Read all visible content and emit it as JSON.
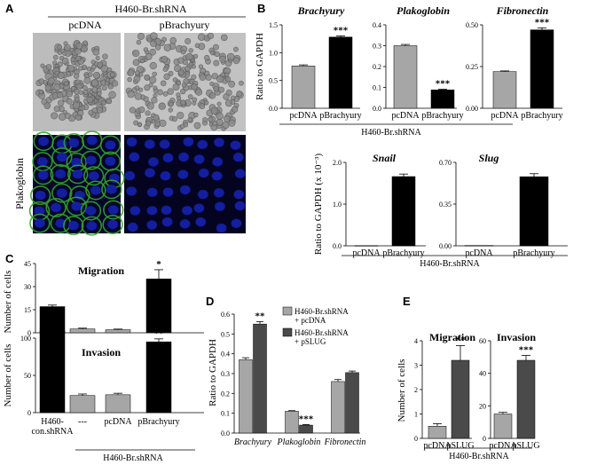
{
  "panels": {
    "A": {
      "letter": "A",
      "header": "H460-Br.shRNA",
      "columns": [
        "pcDNA",
        "pBrachyury"
      ],
      "row_label": "Plakoglobin"
    },
    "B": {
      "letter": "B",
      "group": "H460-Br.shRNA",
      "ylabel_top": "Ratio to GAPDH",
      "ylabel_bottom": "Ratio to GAPDH (x 10⁻³)"
    },
    "C": {
      "letter": "C",
      "group": "H460-Br.shRNA",
      "ylabel": "Number of cells"
    },
    "D": {
      "letter": "D",
      "ylabel": "Ratio to GAPDH"
    },
    "E": {
      "letter": "E",
      "group": "H460-Br.shRNA",
      "ylabel": "Number of cells"
    }
  },
  "colors": {
    "light": "#a6a6a6",
    "dark": "#4a4a4a",
    "black": "#000000",
    "micro_green": "#33a12a",
    "micro_blue": "#1420a8"
  },
  "chart_data": [
    {
      "id": "B-brachyury",
      "type": "bar",
      "title": "Brachyury",
      "categories": [
        "pcDNA",
        "pBrachyury"
      ],
      "values": [
        0.76,
        1.28
      ],
      "errors": [
        0.02,
        0.02
      ],
      "colors": [
        "light",
        "black"
      ],
      "ylim": [
        0,
        1.5
      ],
      "yticks": [
        "0.0",
        "0.5",
        "1.0",
        "1.5"
      ],
      "stars": [
        "",
        "***"
      ],
      "ylabel": "Ratio to GAPDH"
    },
    {
      "id": "B-plakoglobin",
      "type": "bar",
      "title": "Plakoglobin",
      "categories": [
        "pcDNA",
        "pBrachyury"
      ],
      "values": [
        0.3,
        0.088
      ],
      "errors": [
        0.006,
        0.003
      ],
      "colors": [
        "light",
        "black"
      ],
      "ylim": [
        0,
        0.4
      ],
      "yticks": [
        "0.0",
        "0.1",
        "0.2",
        "0.3",
        "0.4"
      ],
      "stars": [
        "",
        "***"
      ]
    },
    {
      "id": "B-fibronectin",
      "type": "bar",
      "title": "Fibronectin",
      "categories": [
        "pcDNA",
        "pBrachyury"
      ],
      "values": [
        0.22,
        0.47
      ],
      "errors": [
        0.004,
        0.012
      ],
      "colors": [
        "light",
        "black"
      ],
      "ylim": [
        0,
        0.5
      ],
      "yticks": [
        "0.00",
        "0.25",
        "0.50"
      ],
      "stars": [
        "",
        "***"
      ]
    },
    {
      "id": "B-snail",
      "type": "bar",
      "title": "Snail",
      "categories": [
        "pcDNA",
        "pBrachyury"
      ],
      "values": [
        0.005,
        1.66
      ],
      "errors": [
        0,
        0.06
      ],
      "colors": [
        "light",
        "black"
      ],
      "ylim": [
        0,
        2.0
      ],
      "yticks": [
        "0.0",
        "1.0",
        "2.0"
      ],
      "stars": [
        "",
        ""
      ],
      "ylabel": "Ratio to GAPDH (x 10⁻³)"
    },
    {
      "id": "B-slug",
      "type": "bar",
      "title": "Slug",
      "categories": [
        "pcDNA",
        "pBrachyury"
      ],
      "values": [
        0.003,
        0.58
      ],
      "errors": [
        0,
        0.025
      ],
      "colors": [
        "light",
        "black"
      ],
      "ylim": [
        0,
        0.7
      ],
      "yticks": [
        "0.00",
        "0.35",
        "0.70"
      ],
      "stars": [
        "",
        ""
      ]
    },
    {
      "id": "C-migration",
      "type": "bar",
      "title": "Migration",
      "categories": [
        "H460-con.shRNA",
        "---",
        "pcDNA",
        "pBrachyury"
      ],
      "values": [
        17,
        2.5,
        2,
        35
      ],
      "errors": [
        1,
        0.5,
        0.4,
        6
      ],
      "colors": [
        "black",
        "light",
        "light",
        "black"
      ],
      "ylim": [
        0,
        45
      ],
      "yticks": [
        "0",
        "15",
        "30",
        "45"
      ],
      "stars": [
        "",
        "",
        "",
        "*"
      ],
      "ylabel": "Number of cells"
    },
    {
      "id": "C-invasion",
      "type": "bar",
      "title": "Invasion",
      "categories": [
        "H460-con.shRNA",
        "---",
        "pcDNA",
        "pBrachyury"
      ],
      "values": [
        110,
        23,
        24,
        95
      ],
      "errors": [
        10,
        2,
        2,
        4
      ],
      "colors": [
        "black",
        "light",
        "light",
        "black"
      ],
      "ylim": [
        0,
        100
      ],
      "yticks": [
        "0",
        "50",
        "100"
      ],
      "stars": [
        "",
        "",
        "",
        "**"
      ],
      "ylabel": "Number of cells"
    },
    {
      "id": "D",
      "type": "bar",
      "title": "",
      "categories": [
        "Brachyury",
        "Plakoglobin",
        "Fibronectin"
      ],
      "series": [
        {
          "name": "H460-Br.shRNA + pcDNA",
          "values": [
            0.37,
            0.11,
            0.26
          ],
          "errors": [
            0.01,
            0.003,
            0.01
          ]
        },
        {
          "name": "H460-Br.shRNA + pSLUG",
          "values": [
            0.55,
            0.04,
            0.305
          ],
          "errors": [
            0.012,
            0.003,
            0.008
          ]
        }
      ],
      "stars": [
        [
          "",
          "**"
        ],
        [
          "",
          "***"
        ],
        [
          "",
          ""
        ]
      ],
      "ylim": [
        0,
        0.6
      ],
      "yticks": [
        "0.0",
        "0.1",
        "0.2",
        "0.3",
        "0.4",
        "0.5",
        "0.6"
      ],
      "ylabel": "Ratio to GAPDH"
    },
    {
      "id": "E-migration",
      "type": "bar",
      "title": "Migration",
      "categories": [
        "pcDNA",
        "pSLUG"
      ],
      "values": [
        0.5,
        3.2
      ],
      "errors": [
        0.1,
        0.6
      ],
      "colors": [
        "light",
        "dark"
      ],
      "ylim": [
        0,
        4
      ],
      "yticks": [
        "0",
        "1",
        "2",
        "3",
        "4"
      ],
      "stars": [
        "",
        "**"
      ],
      "ylabel": "Number of cells"
    },
    {
      "id": "E-invasion",
      "type": "bar",
      "title": "Invasion",
      "categories": [
        "pcDNA",
        "pSLUG"
      ],
      "values": [
        15,
        48
      ],
      "errors": [
        1,
        3
      ],
      "colors": [
        "light",
        "dark"
      ],
      "ylim": [
        0,
        60
      ],
      "yticks": [
        "0",
        "20",
        "40",
        "60"
      ],
      "stars": [
        "",
        "***"
      ]
    }
  ]
}
